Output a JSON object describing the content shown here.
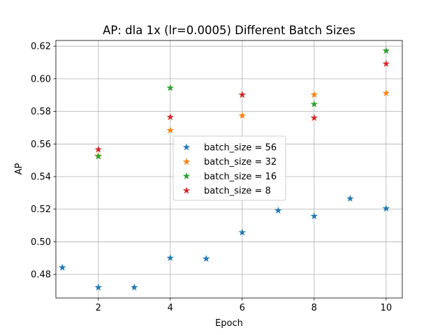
{
  "chart_data": {
    "type": "scatter",
    "title": "AP: dla 1x (lr=0.0005) Different Batch Sizes",
    "xlabel": "Epoch",
    "ylabel": "AP",
    "xlim": [
      0.82,
      10.45
    ],
    "ylim": [
      0.4655,
      0.6235
    ],
    "xticks": [
      2,
      4,
      6,
      8,
      10
    ],
    "yticks": [
      0.48,
      0.5,
      0.52,
      0.54,
      0.56,
      0.58,
      0.6,
      0.62
    ],
    "x_tick_labels": [
      "2",
      "4",
      "6",
      "8",
      "10"
    ],
    "y_tick_labels": [
      "0.48",
      "0.50",
      "0.52",
      "0.54",
      "0.56",
      "0.58",
      "0.60",
      "0.62"
    ],
    "grid": true,
    "legend_position": "center",
    "marker": "star",
    "series": [
      {
        "name": "batch_size = 56",
        "color": "#1f77b4",
        "x": [
          1,
          2,
          3,
          4,
          5,
          6,
          7,
          8,
          9,
          10
        ],
        "y": [
          0.4842,
          0.472,
          0.472,
          0.4901,
          0.4896,
          0.5057,
          0.5192,
          0.5157,
          0.5265,
          0.5204
        ]
      },
      {
        "name": "batch_size = 32",
        "color": "#ff7f0e",
        "x": [
          2,
          4,
          6,
          8,
          10
        ],
        "y": [
          0.5527,
          0.5684,
          0.5774,
          0.5902,
          0.5912
        ]
      },
      {
        "name": "batch_size = 16",
        "color": "#2ca02c",
        "x": [
          2,
          4,
          6,
          8,
          10
        ],
        "y": [
          0.5524,
          0.5944,
          0.5902,
          0.5844,
          0.6172
        ]
      },
      {
        "name": "batch_size = 8",
        "color": "#d62728",
        "x": [
          2,
          4,
          6,
          8,
          10
        ],
        "y": [
          0.5566,
          0.5765,
          0.5902,
          0.576,
          0.6092
        ]
      }
    ]
  }
}
